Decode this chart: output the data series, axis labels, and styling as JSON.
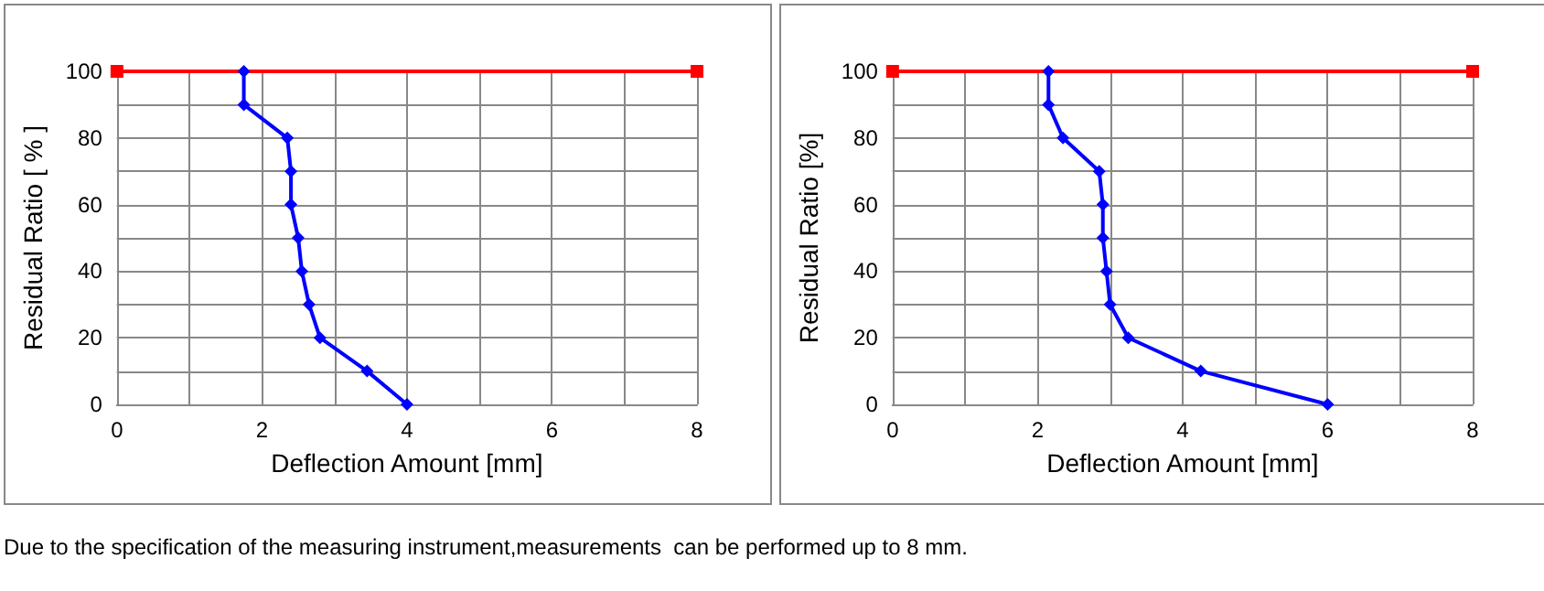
{
  "chart_data": [
    {
      "type": "line",
      "xlabel": "Deflection Amount [mm]",
      "ylabel": "Residual Ratio [ % ]",
      "xlim": [
        0,
        8
      ],
      "ylim": [
        0,
        100
      ],
      "xticks": [
        0,
        {
          "value": 1,
          "label": null
        },
        2,
        {
          "value": 3,
          "label": null
        },
        4,
        {
          "value": 5,
          "label": null
        },
        6,
        {
          "value": 7,
          "label": null
        },
        8
      ],
      "yticks": [
        0,
        {
          "value": 10,
          "label": null
        },
        20,
        {
          "value": 30,
          "label": null
        },
        40,
        {
          "value": 50,
          "label": null
        },
        60,
        {
          "value": 70,
          "label": null
        },
        80,
        {
          "value": 90,
          "label": null
        },
        100
      ],
      "grid": true,
      "series": [
        {
          "color": "#ff0000",
          "marker": "square",
          "x": [
            0,
            8
          ],
          "values": [
            100,
            100
          ]
        },
        {
          "color": "#0000ff",
          "marker": "diamond",
          "x": [
            1.75,
            1.75,
            2.35,
            2.4,
            2.4,
            2.5,
            2.55,
            2.65,
            2.8,
            3.45,
            4
          ],
          "values": [
            100,
            90,
            80,
            70,
            60,
            50,
            40,
            30,
            20,
            10,
            0
          ]
        }
      ],
      "annotations": [
        "Due to the specification of the measuring instrument,measurements  can be performed up to 8 mm."
      ]
    },
    {
      "type": "line",
      "xlabel": "Deflection Amount [mm]",
      "ylabel": "Residual Ratio [%]",
      "xlim": [
        0,
        8
      ],
      "ylim": [
        0,
        100
      ],
      "xticks": [
        0,
        {
          "value": 1,
          "label": null
        },
        2,
        {
          "value": 3,
          "label": null
        },
        4,
        {
          "value": 5,
          "label": null
        },
        6,
        {
          "value": 7,
          "label": null
        },
        8
      ],
      "yticks": [
        0,
        {
          "value": 10,
          "label": null
        },
        20,
        {
          "value": 30,
          "label": null
        },
        40,
        {
          "value": 50,
          "label": null
        },
        60,
        {
          "value": 70,
          "label": null
        },
        80,
        {
          "value": 90,
          "label": null
        },
        100
      ],
      "grid": true,
      "series": [
        {
          "color": "#ff0000",
          "marker": "square",
          "x": [
            0,
            8
          ],
          "values": [
            100,
            100
          ]
        },
        {
          "color": "#0000ff",
          "marker": "diamond",
          "x": [
            2.15,
            2.15,
            2.35,
            2.85,
            2.9,
            2.9,
            2.95,
            3.0,
            3.25,
            4.25,
            6
          ],
          "values": [
            100,
            90,
            80,
            70,
            60,
            50,
            40,
            30,
            20,
            10,
            0
          ]
        }
      ]
    }
  ]
}
